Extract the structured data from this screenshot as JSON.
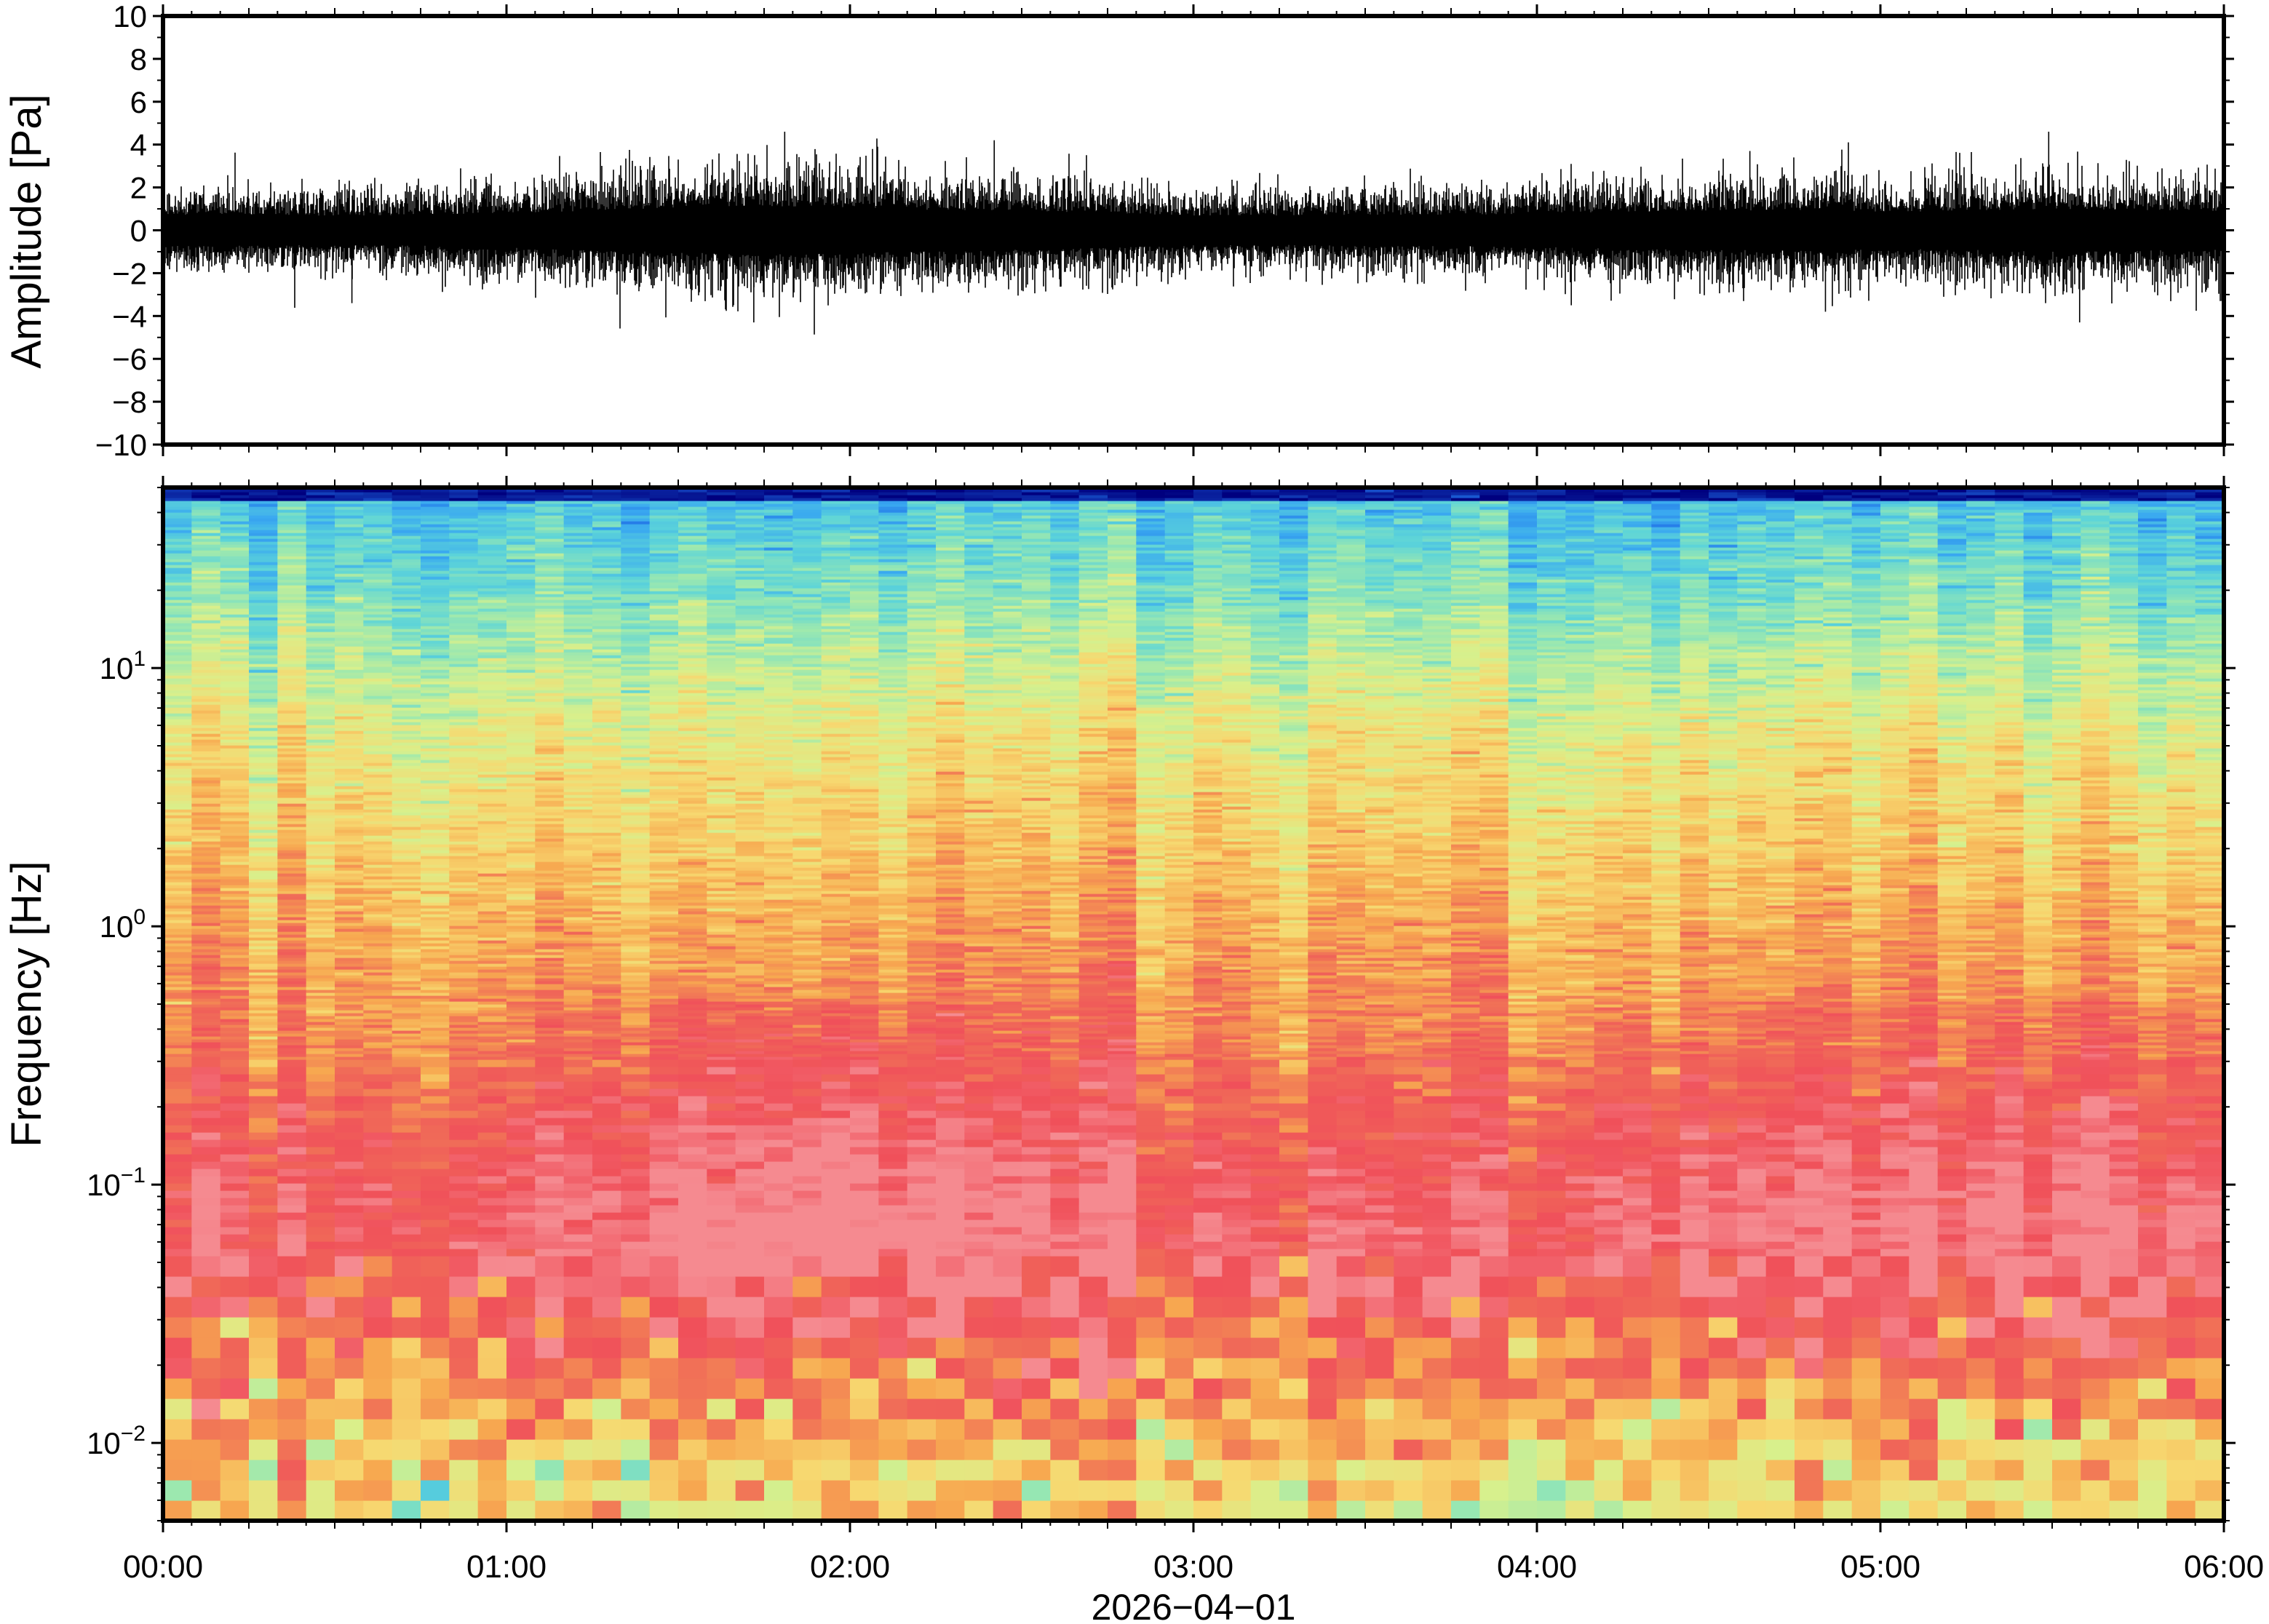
{
  "chart_data": [
    {
      "type": "line",
      "title": "",
      "ylabel": "Amplitude [Pa]",
      "xlabel": "",
      "ylim": [
        -10,
        10
      ],
      "yticks": [
        -10,
        -8,
        -6,
        -4,
        -2,
        0,
        2,
        4,
        6,
        8,
        10
      ],
      "ytick_labels": [
        "−10",
        "−8",
        "−6",
        "−4",
        "−2",
        "0",
        "2",
        "4",
        "6",
        "8",
        "10"
      ],
      "x_range_hours": [
        0,
        6
      ],
      "envelope": {
        "x_hours": [
          0,
          0.25,
          0.5,
          0.75,
          1.0,
          1.25,
          1.5,
          1.75,
          2.0,
          2.25,
          2.5,
          2.75,
          3.0,
          3.25,
          3.5,
          3.75,
          4.0,
          4.25,
          4.5,
          4.75,
          5.0,
          5.25,
          5.5,
          5.75,
          6.0
        ],
        "amplitude": [
          0.8,
          0.8,
          0.75,
          0.8,
          0.9,
          1.0,
          1.15,
          1.25,
          1.2,
          1.05,
          1.0,
          0.9,
          0.75,
          0.75,
          0.8,
          0.8,
          0.85,
          0.95,
          1.0,
          1.05,
          0.95,
          1.0,
          1.1,
          1.05,
          1.0
        ]
      },
      "spikes": [
        {
          "x_hours": 0.55,
          "y": -3.4
        },
        {
          "x_hours": 1.5,
          "y": 3.3
        },
        {
          "x_hours": 1.72,
          "y": -4.3
        },
        {
          "x_hours": 1.81,
          "y": 4.6
        },
        {
          "x_hours": 2.42,
          "y": 4.2
        },
        {
          "x_hours": 4.1,
          "y": -3.5
        },
        {
          "x_hours": 4.62,
          "y": 3.7
        },
        {
          "x_hours": 4.84,
          "y": -3.8
        },
        {
          "x_hours": 5.49,
          "y": 4.6
        },
        {
          "x_hours": 5.58,
          "y": -4.3
        }
      ]
    },
    {
      "type": "heatmap",
      "title": "",
      "ylabel": "Frequency [Hz]",
      "xlabel": "2026−04−01",
      "x_tick_labels": [
        "00:00",
        "01:00",
        "02:00",
        "03:00",
        "04:00",
        "05:00",
        "06:00"
      ],
      "x_range_hours": [
        0,
        6
      ],
      "yscale": "log",
      "ylim": [
        0.005,
        50
      ],
      "y_ticks": [
        0.01,
        0.1,
        1,
        10
      ],
      "y_tick_labels": [
        {
          "base": "10",
          "exp": "−2"
        },
        {
          "base": "10",
          "exp": "−1"
        },
        {
          "base": "10",
          "exp": "0"
        },
        {
          "base": "10",
          "exp": "1"
        }
      ],
      "colormap": [
        "#00007f",
        "#1f6fe6",
        "#3aa9f0",
        "#5cd4d9",
        "#9be8b0",
        "#d8f08c",
        "#f7d870",
        "#f7a850",
        "#f06a58",
        "#f0505a",
        "#f58a90"
      ],
      "power_profile": {
        "freq_hz": [
          0.006,
          0.009,
          0.015,
          0.025,
          0.04,
          0.06,
          0.1,
          0.2,
          0.35,
          0.6,
          1.0,
          2.0,
          5.0,
          10.0,
          20.0,
          45.0,
          50.0
        ],
        "level": [
          0.58,
          0.62,
          0.72,
          0.8,
          0.9,
          0.95,
          0.93,
          0.85,
          0.78,
          0.72,
          0.68,
          0.62,
          0.55,
          0.46,
          0.35,
          0.25,
          0.0
        ]
      }
    }
  ]
}
